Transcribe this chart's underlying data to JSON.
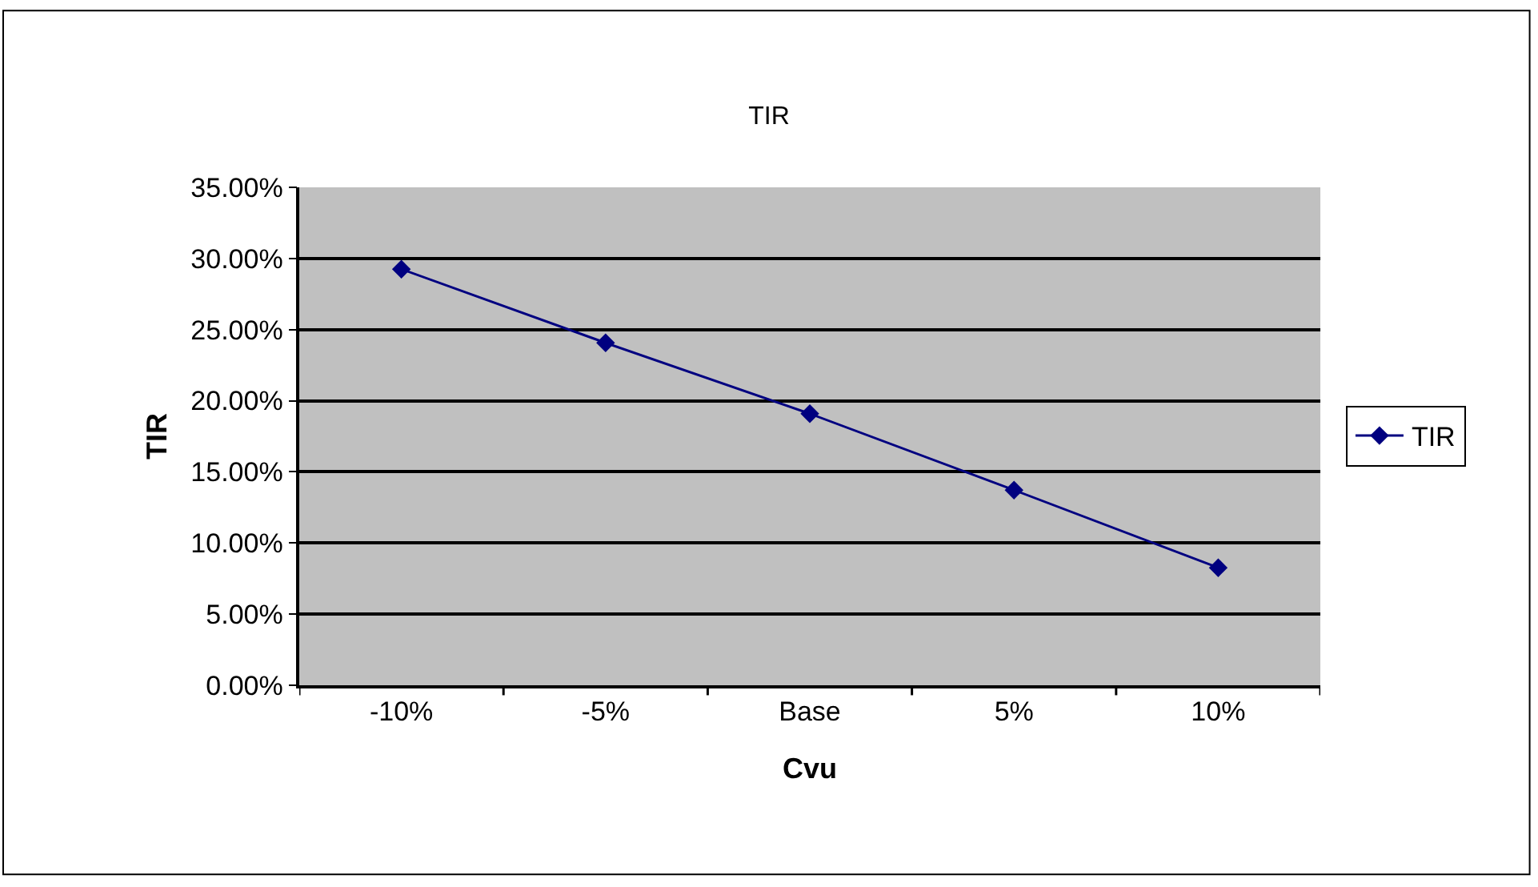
{
  "chart_data": {
    "type": "line",
    "title": "TIR",
    "xlabel": "Cvu",
    "ylabel": "TIR",
    "categories": [
      "-10%",
      "-5%",
      "Base",
      "5%",
      "10%"
    ],
    "series": [
      {
        "name": "TIR",
        "color": "#000080",
        "values": [
          29.25,
          24.07,
          19.09,
          13.72,
          8.26
        ]
      }
    ],
    "ylim": [
      0,
      35
    ],
    "yticks": [
      {
        "value": 0,
        "label": "0.00%"
      },
      {
        "value": 5,
        "label": "5.00%"
      },
      {
        "value": 10,
        "label": "10.00%"
      },
      {
        "value": 15,
        "label": "15.00%"
      },
      {
        "value": 20,
        "label": "20.00%"
      },
      {
        "value": 25,
        "label": "25.00%"
      },
      {
        "value": 30,
        "label": "30.00%"
      },
      {
        "value": 35,
        "label": "35.00%"
      }
    ],
    "grid": "y",
    "legend": "right",
    "marker": "diamond",
    "line_style": "solid"
  }
}
